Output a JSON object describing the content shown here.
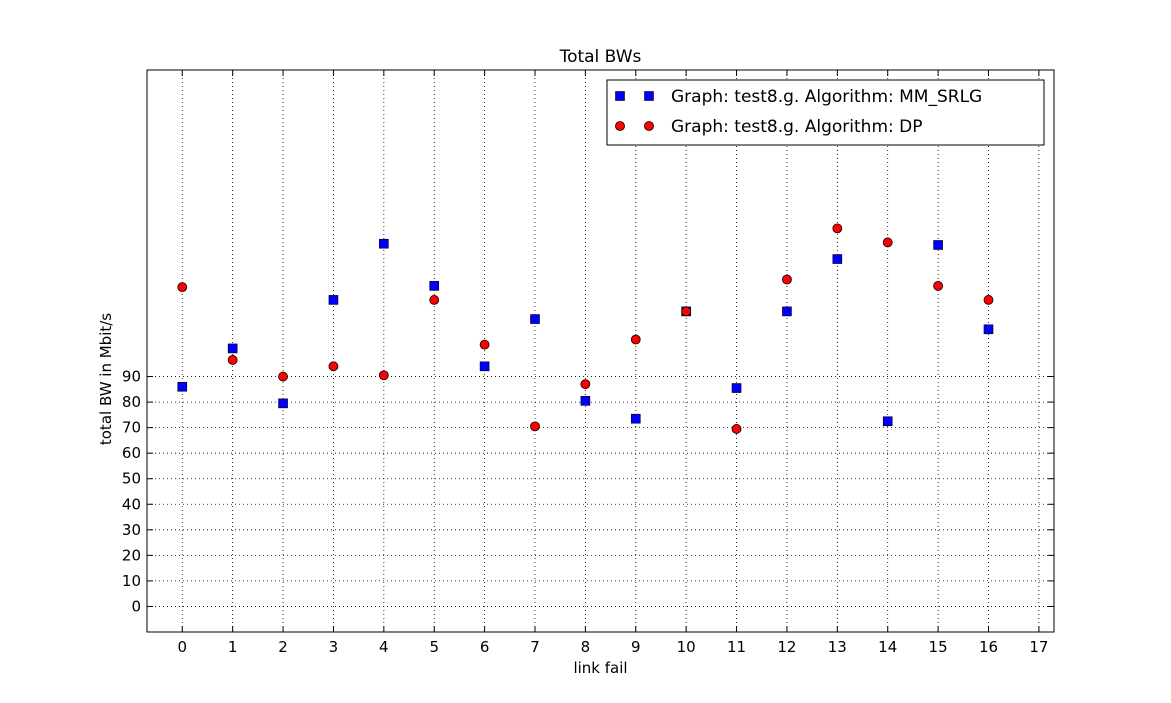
{
  "chart_data": {
    "type": "scatter",
    "title": "Total BWs",
    "xlabel": "link fail",
    "ylabel": "total BW in Mbit/s",
    "xlim": [
      -0.7,
      17.3
    ],
    "ylim": [
      -10,
      210
    ],
    "x_ticks": [
      "0",
      "1",
      "2",
      "3",
      "4",
      "5",
      "6",
      "7",
      "8",
      "9",
      "10",
      "11",
      "12",
      "13",
      "14",
      "15",
      "16",
      "17"
    ],
    "y_ticks": [
      "0",
      "10",
      "20",
      "30",
      "40",
      "50",
      "60",
      "70",
      "80",
      "90"
    ],
    "grid": true,
    "legend_position": "top-right",
    "series": [
      {
        "name": "Graph: test8.g. Algorithm: MM_SRLG",
        "marker": "square",
        "color": "#0000ff",
        "x": [
          0,
          1,
          2,
          3,
          4,
          5,
          6,
          7,
          8,
          9,
          10,
          11,
          12,
          13,
          14,
          15,
          16
        ],
        "y": [
          86,
          101,
          79.5,
          120,
          142,
          125.5,
          94,
          112.5,
          80.5,
          73.5,
          115.5,
          85.5,
          115.5,
          136,
          72.5,
          141.5,
          108.5
        ]
      },
      {
        "name": "Graph: test8.g. Algorithm: DP",
        "marker": "circle",
        "color": "#ff0000",
        "x": [
          0,
          1,
          2,
          3,
          4,
          5,
          6,
          7,
          8,
          9,
          10,
          11,
          12,
          13,
          14,
          15,
          16
        ],
        "y": [
          125,
          96.5,
          90,
          94,
          90.5,
          120,
          102.5,
          70.5,
          87,
          104.5,
          115.5,
          69.5,
          128,
          148,
          142.5,
          125.5,
          120
        ]
      }
    ]
  }
}
